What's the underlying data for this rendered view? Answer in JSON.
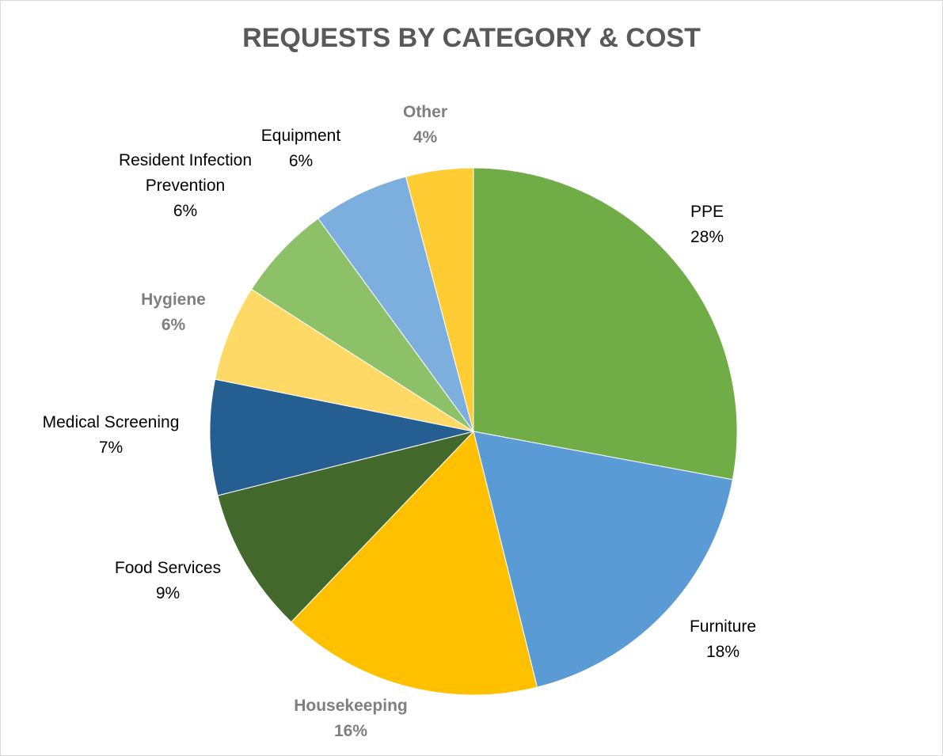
{
  "chart_data": {
    "type": "pie",
    "title": "REQUESTS BY CATEGORY & COST",
    "start_angle_deg": 0,
    "direction": "clockwise",
    "slices": [
      {
        "label": "PPE",
        "label_lines": [
          "PPE"
        ],
        "percent_label": "28%",
        "value": 28.4,
        "color": "#70ad47",
        "label_style": "normal"
      },
      {
        "label": "Furniture",
        "label_lines": [
          "Furniture"
        ],
        "percent_label": "18%",
        "value": 18.5,
        "color": "#5b9bd5",
        "label_style": "normal"
      },
      {
        "label": "Housekeeping",
        "label_lines": [
          "Housekeeping"
        ],
        "percent_label": "16%",
        "value": 16.3,
        "color": "#ffc000",
        "label_style": "emphasis"
      },
      {
        "label": "Food Services",
        "label_lines": [
          "Food Services"
        ],
        "percent_label": "9%",
        "value": 9.1,
        "color": "#43682b",
        "label_style": "normal"
      },
      {
        "label": "Medical Screening",
        "label_lines": [
          "Medical Screening"
        ],
        "percent_label": "7%",
        "value": 7.2,
        "color": "#255e91",
        "label_style": "normal"
      },
      {
        "label": "Hygiene",
        "label_lines": [
          "Hygiene"
        ],
        "percent_label": "6%",
        "value": 6.0,
        "color": "#ffd966",
        "label_style": "emphasis"
      },
      {
        "label": "Resident Infection Prevention",
        "label_lines": [
          "Resident Infection",
          "Prevention"
        ],
        "percent_label": "6%",
        "value": 6.0,
        "color": "#8cc168",
        "label_style": "normal"
      },
      {
        "label": "Equipment",
        "label_lines": [
          "Equipment"
        ],
        "percent_label": "6%",
        "value": 6.0,
        "color": "#7cafdd",
        "label_style": "normal"
      },
      {
        "label": "Other",
        "label_lines": [
          "Other"
        ],
        "percent_label": "4%",
        "value": 4.2,
        "color": "#ffcd33",
        "label_style": "emphasis"
      }
    ],
    "legend": "none",
    "data_labels": "category-and-percent"
  }
}
